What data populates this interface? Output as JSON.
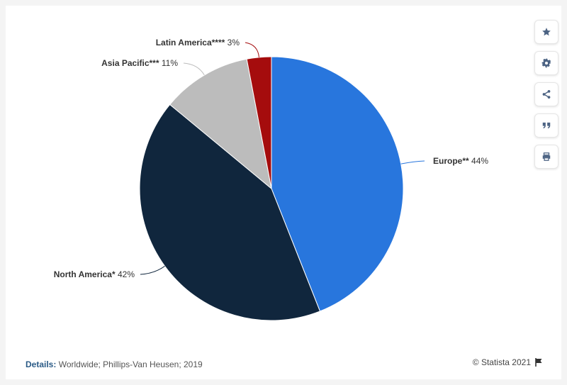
{
  "chart_data": {
    "type": "pie",
    "slices": [
      {
        "label": "Europe**",
        "value": 44,
        "display": "44%",
        "color": "#2876dd"
      },
      {
        "label": "North America*",
        "value": 42,
        "display": "42%",
        "color": "#10263d"
      },
      {
        "label": "Asia Pacific***",
        "value": 11,
        "display": "11%",
        "color": "#bcbcbc"
      },
      {
        "label": "Latin America****",
        "value": 3,
        "display": "3%",
        "color": "#a50c0d"
      }
    ],
    "label_line_color": "#777777"
  },
  "toolbar": {
    "buttons": [
      {
        "name": "star-icon"
      },
      {
        "name": "gear-icon"
      },
      {
        "name": "share-icon"
      },
      {
        "name": "quote-icon"
      },
      {
        "name": "print-icon"
      }
    ],
    "icon_color": "#4c6383"
  },
  "footer": {
    "details_label": "Details:",
    "details_text": "Worldwide; Phillips-Van Heusen; 2019",
    "credit": "© Statista 2021"
  }
}
